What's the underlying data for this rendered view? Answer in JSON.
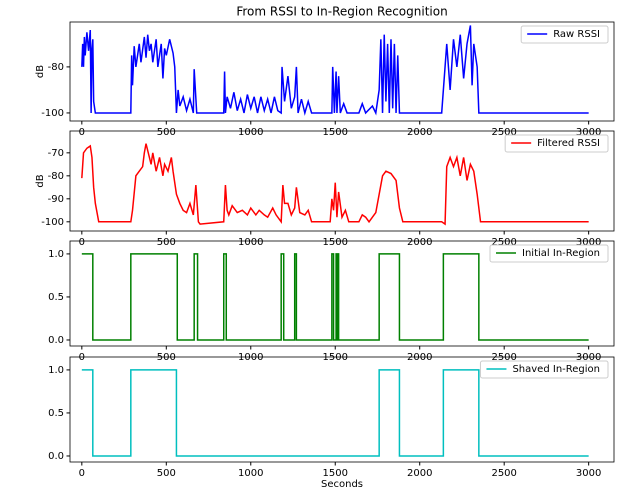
{
  "chart_data": [
    {
      "type": "line",
      "title": "From RSSI to In-Region Recognition",
      "ylabel": "dB",
      "legend": "upper right",
      "xlim": [
        -70,
        3150
      ],
      "ylim": [
        -103.5,
        -60.5
      ],
      "xticks": [
        0,
        500,
        1000,
        1500,
        2000,
        2500,
        3000
      ],
      "yticks": [
        -80,
        -100
      ],
      "x": [
        0,
        5,
        10,
        15,
        20,
        30,
        40,
        50,
        55,
        60,
        65,
        70,
        80,
        290,
        295,
        300,
        310,
        320,
        340,
        350,
        370,
        380,
        390,
        400,
        410,
        420,
        440,
        450,
        470,
        480,
        490,
        500,
        520,
        540,
        550,
        560,
        570,
        580,
        600,
        620,
        640,
        660,
        665,
        680,
        840,
        845,
        850,
        860,
        880,
        900,
        920,
        940,
        960,
        980,
        1000,
        1020,
        1040,
        1060,
        1080,
        1100,
        1120,
        1140,
        1160,
        1180,
        1185,
        1200,
        1220,
        1240,
        1260,
        1270,
        1280,
        1300,
        1320,
        1340,
        1360,
        1480,
        1485,
        1495,
        1505,
        1510,
        1520,
        1530,
        1550,
        1570,
        1640,
        1660,
        1680,
        1720,
        1740,
        1760,
        1770,
        1780,
        1790,
        1800,
        1810,
        1820,
        1830,
        1840,
        1850,
        1860,
        1870,
        1880,
        2130,
        2150,
        2160,
        2180,
        2200,
        2220,
        2240,
        2260,
        2280,
        2300,
        2310,
        2320,
        2340,
        2350,
        3000
      ],
      "series": [
        {
          "name": "Raw RSSI",
          "color": "#0000ff",
          "values": [
            -80,
            -70,
            -80,
            -67,
            -75,
            -65,
            -73,
            -64,
            -100,
            -72,
            -68,
            -95,
            -100,
            -100,
            -75,
            -88,
            -71,
            -80,
            -70,
            -78,
            -67,
            -76,
            -66,
            -73,
            -70,
            -78,
            -68,
            -80,
            -70,
            -85,
            -72,
            -75,
            -68,
            -74,
            -80,
            -100,
            -90,
            -97,
            -93,
            -99,
            -94,
            -100,
            -81,
            -100,
            -100,
            -82,
            -100,
            -93,
            -98,
            -91,
            -99,
            -94,
            -100,
            -92,
            -98,
            -93,
            -100,
            -93,
            -99,
            -94,
            -100,
            -93,
            -99,
            -100,
            -80,
            -95,
            -84,
            -98,
            -93,
            -80,
            -100,
            -94,
            -100,
            -95,
            -100,
            -100,
            -80,
            -100,
            -82,
            -100,
            -84,
            -100,
            -96,
            -100,
            -100,
            -96,
            -100,
            -97,
            -100,
            -90,
            -68,
            -100,
            -66,
            -95,
            -70,
            -100,
            -68,
            -98,
            -70,
            -100,
            -75,
            -100,
            -100,
            -80,
            -70,
            -90,
            -68,
            -80,
            -66,
            -85,
            -70,
            -62,
            -88,
            -70,
            -80,
            -100,
            -100
          ]
        }
      ]
    },
    {
      "type": "line",
      "ylabel": "dB",
      "legend": "upper right",
      "xlim": [
        -70,
        3150
      ],
      "ylim": [
        -104,
        -60.5
      ],
      "xticks": [
        0,
        500,
        1000,
        1500,
        2000,
        2500,
        3000
      ],
      "yticks": [
        -70,
        -80,
        -90,
        -100
      ],
      "x": [
        0,
        10,
        30,
        50,
        60,
        70,
        80,
        100,
        290,
        300,
        320,
        340,
        360,
        370,
        380,
        400,
        410,
        420,
        440,
        460,
        480,
        490,
        510,
        530,
        540,
        560,
        580,
        600,
        620,
        640,
        660,
        675,
        690,
        700,
        840,
        850,
        860,
        870,
        890,
        920,
        950,
        980,
        1000,
        1030,
        1050,
        1080,
        1100,
        1130,
        1150,
        1180,
        1190,
        1200,
        1220,
        1240,
        1260,
        1270,
        1290,
        1320,
        1340,
        1360,
        1470,
        1480,
        1490,
        1500,
        1510,
        1520,
        1540,
        1560,
        1580,
        1640,
        1660,
        1680,
        1700,
        1720,
        1740,
        1760,
        1780,
        1800,
        1830,
        1860,
        1880,
        1900,
        2130,
        2150,
        2160,
        2180,
        2200,
        2220,
        2240,
        2260,
        2280,
        2300,
        2320,
        2340,
        2360,
        3000
      ],
      "series": [
        {
          "name": "Filtered RSSI",
          "color": "#ff0000",
          "values": [
            -81,
            -70,
            -68,
            -67,
            -72,
            -85,
            -92,
            -100,
            -100,
            -95,
            -80,
            -78,
            -76,
            -70,
            -66,
            -72,
            -75,
            -70,
            -78,
            -72,
            -80,
            -75,
            -78,
            -72,
            -78,
            -88,
            -92,
            -95,
            -96,
            -92,
            -97,
            -84,
            -100,
            -101,
            -100,
            -84,
            -95,
            -97,
            -93,
            -96,
            -95,
            -97,
            -94,
            -97,
            -95,
            -97,
            -98,
            -94,
            -97,
            -100,
            -84,
            -92,
            -92,
            -97,
            -94,
            -85,
            -96,
            -97,
            -95,
            -100,
            -100,
            -90,
            -95,
            -83,
            -98,
            -87,
            -98,
            -95,
            -100,
            -100,
            -97,
            -98,
            -100,
            -98,
            -96,
            -88,
            -80,
            -78,
            -79,
            -82,
            -94,
            -100,
            -100,
            -101,
            -76,
            -72,
            -76,
            -72,
            -80,
            -72,
            -82,
            -75,
            -78,
            -88,
            -100,
            -100
          ]
        }
      ]
    },
    {
      "type": "line",
      "drawstyle": "steps-post",
      "legend": "upper right",
      "xlim": [
        -70,
        3150
      ],
      "ylim": [
        -0.07,
        1.15
      ],
      "xticks": [
        0,
        500,
        1000,
        1500,
        2000,
        2500,
        3000
      ],
      "yticks": [
        {
          "value": 0,
          "label": "0.0"
        },
        0.5,
        {
          "value": 1,
          "label": "1.0"
        }
      ],
      "x": [
        0,
        65,
        290,
        565,
        665,
        685,
        840,
        855,
        1180,
        1195,
        1260,
        1270,
        1480,
        1490,
        1505,
        1510,
        1515,
        1520,
        1760,
        1880,
        2140,
        2350,
        3000
      ],
      "series": [
        {
          "name": "Initial In-Region",
          "color": "#008000",
          "values": [
            1,
            0,
            1,
            0,
            1,
            0,
            1,
            0,
            1,
            0,
            1,
            0,
            1,
            0,
            1,
            0,
            1,
            0,
            1,
            0,
            1,
            0,
            0
          ]
        }
      ]
    },
    {
      "type": "line",
      "drawstyle": "steps-post",
      "legend": "upper right",
      "xlabel": "Seconds",
      "xlim": [
        -70,
        3150
      ],
      "ylim": [
        -0.07,
        1.15
      ],
      "xticks": [
        0,
        500,
        1000,
        1500,
        2000,
        2500,
        3000
      ],
      "yticks": [
        {
          "value": 0,
          "label": "0.0"
        },
        0.5,
        {
          "value": 1,
          "label": "1.0"
        }
      ],
      "x": [
        0,
        65,
        290,
        560,
        1760,
        1880,
        2140,
        2350,
        3000
      ],
      "series": [
        {
          "name": "Shaved In-Region",
          "color": "#00bfbf",
          "values": [
            1,
            0,
            1,
            0,
            1,
            0,
            1,
            0,
            0
          ]
        }
      ]
    }
  ]
}
